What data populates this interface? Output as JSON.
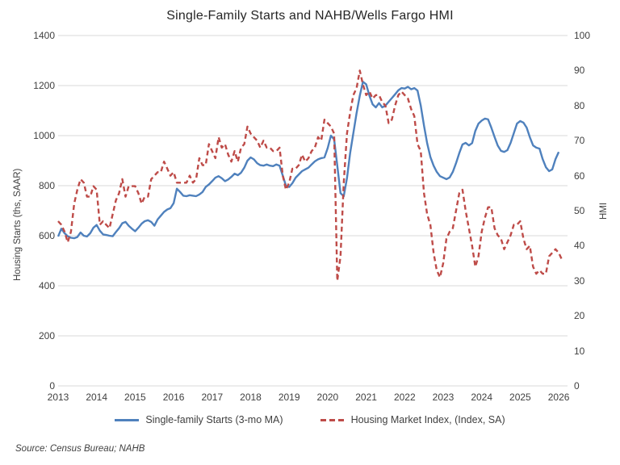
{
  "source_note": "Source: Census Bureau; NAHB",
  "colors": {
    "starts_line": "#4F81BD",
    "hmi_line": "#BE4B48",
    "gridline": "#D9D9D9",
    "text": "#404040"
  },
  "chart_data": {
    "type": "line",
    "title": "Single-Family Starts and NAHB/Wells Fargo HMI",
    "x_frequency": "monthly",
    "x_start": "2013-01",
    "x_end": "2026-02",
    "x_months": 158,
    "x_tick_labels": [
      "2013",
      "2014",
      "2015",
      "2016",
      "2017",
      "2018",
      "2019",
      "2020",
      "2021",
      "2022",
      "2023",
      "2024",
      "2025",
      "2026"
    ],
    "grid": true,
    "legend_position": "bottom",
    "left_axis": {
      "label": "Housing Starts (ths, SAAR)",
      "min": 0,
      "max": 1400,
      "step": 200
    },
    "right_axis": {
      "label": "HMI",
      "min": 0,
      "max": 100,
      "step": 10
    },
    "series": [
      {
        "id": "starts",
        "name": "Single-family Starts (3-mo MA)",
        "axis": "left",
        "color": "#4F81BD",
        "style": "solid",
        "values": [
          597,
          628,
          610,
          598,
          592,
          590,
          595,
          613,
          600,
          597,
          610,
          632,
          643,
          620,
          605,
          603,
          600,
          598,
          615,
          630,
          650,
          655,
          640,
          628,
          618,
          632,
          648,
          658,
          662,
          655,
          640,
          665,
          680,
          695,
          705,
          710,
          730,
          788,
          775,
          760,
          758,
          762,
          760,
          758,
          765,
          775,
          795,
          805,
          818,
          832,
          838,
          830,
          818,
          825,
          835,
          848,
          842,
          852,
          872,
          900,
          913,
          905,
          890,
          882,
          880,
          885,
          880,
          878,
          885,
          880,
          840,
          800,
          795,
          810,
          832,
          845,
          858,
          865,
          872,
          885,
          897,
          905,
          910,
          913,
          950,
          1000,
          985,
          880,
          770,
          758,
          830,
          930,
          1010,
          1090,
          1160,
          1215,
          1205,
          1160,
          1125,
          1113,
          1130,
          1113,
          1120,
          1135,
          1150,
          1165,
          1181,
          1190,
          1188,
          1195,
          1185,
          1190,
          1180,
          1120,
          1040,
          970,
          915,
          880,
          855,
          838,
          832,
          826,
          833,
          855,
          890,
          930,
          965,
          971,
          961,
          970,
          1019,
          1048,
          1060,
          1068,
          1065,
          1032,
          995,
          960,
          939,
          935,
          942,
          971,
          1010,
          1048,
          1058,
          1052,
          1032,
          994,
          961,
          952,
          948,
          906,
          874,
          858,
          865,
          906,
          935,
          null
        ]
      },
      {
        "id": "hmi",
        "name": "Housing Market Index, (Index, SA)",
        "axis": "right",
        "color": "#BE4B48",
        "style": "dashed",
        "values": [
          47,
          46,
          44,
          41,
          44,
          52,
          56,
          59,
          58,
          54,
          54,
          57,
          56,
          46,
          47,
          46,
          45,
          49,
          53,
          55,
          59,
          54,
          57,
          57,
          57,
          55,
          52,
          54,
          54,
          59,
          60,
          61,
          61,
          64,
          62,
          60,
          61,
          58,
          58,
          58,
          58,
          60,
          58,
          59,
          65,
          63,
          63,
          69,
          67,
          65,
          71,
          68,
          69,
          66,
          64,
          67,
          64,
          68,
          69,
          74,
          72,
          71,
          70,
          68,
          70,
          68,
          68,
          67,
          67,
          68,
          60,
          56,
          58,
          62,
          62,
          63,
          66,
          64,
          65,
          67,
          68,
          71,
          70,
          76,
          75,
          74,
          72,
          30,
          37,
          58,
          72,
          78,
          83,
          85,
          90,
          86,
          83,
          84,
          82,
          83,
          83,
          81,
          80,
          75,
          76,
          80,
          83,
          84,
          83,
          82,
          79,
          77,
          69,
          67,
          55,
          49,
          46,
          38,
          33,
          31,
          35,
          42,
          44,
          45,
          50,
          55,
          56,
          50,
          45,
          40,
          34,
          37,
          44,
          48,
          51,
          51,
          45,
          43,
          42,
          39,
          41,
          43,
          46,
          46,
          47,
          42,
          39,
          40,
          34,
          32,
          33,
          32,
          32,
          37,
          38,
          39,
          38,
          36
        ]
      }
    ]
  }
}
